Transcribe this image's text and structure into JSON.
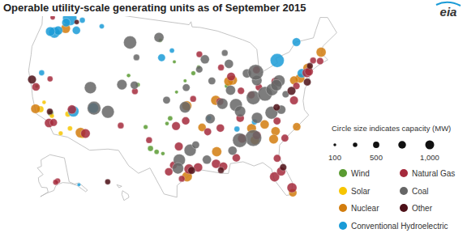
{
  "chart_data": {
    "type": "map",
    "title": "Operable utility-scale generating units as of September 2015",
    "logo": "eia",
    "series": [
      {
        "name": "Wind",
        "color": "#5a9b32",
        "lon": [
          -101.5,
          -100.5,
          -99.5,
          -102.5,
          -98.5,
          -99.0,
          -94.5,
          -93.5,
          -96.0,
          -120.5,
          -118.3,
          -121.7,
          -106.2,
          -98.0,
          -100.8,
          -97.5,
          -104.4,
          -88.6
        ],
        "lat": [
          32.4,
          32.0,
          31.8,
          35.2,
          36.5,
          35.8,
          42.5,
          43.3,
          41.5,
          45.7,
          35.1,
          38.1,
          41.8,
          44.0,
          46.8,
          40.0,
          40.7,
          40.6
        ],
        "size": [
          400,
          300,
          200,
          250,
          300,
          200,
          250,
          200,
          150,
          300,
          400,
          150,
          200,
          150,
          200,
          150,
          250,
          250
        ]
      },
      {
        "name": "Solar",
        "color": "#f7c500",
        "lon": [
          -115.5,
          -114.7,
          -116.0,
          -120.1,
          -112.5,
          -119.8,
          -118.0
        ],
        "lat": [
          35.5,
          33.7,
          32.8,
          35.3,
          33.0,
          36.3,
          34.8
        ],
        "size": [
          400,
          300,
          250,
          550,
          250,
          200,
          250
        ]
      },
      {
        "name": "Nuclear",
        "color": "#d27d0e",
        "lon": [
          -112.9,
          -120.9,
          -95.7,
          -81.3,
          -87.5,
          -88.2,
          -75.6,
          -76.7,
          -73.9,
          -70.8,
          -84.8,
          -81.8,
          -85.1,
          -91.0,
          -80.2,
          -93.2,
          -90.7,
          -95.7,
          -119.3,
          -77.8,
          -82.9
        ],
        "lat": [
          33.4,
          35.2,
          28.8,
          33.9,
          41.3,
          41.2,
          40.2,
          40.1,
          41.3,
          42.9,
          33.1,
          32.9,
          34.7,
          32.0,
          25.4,
          35.3,
          38.8,
          38.2,
          46.5,
          34.0,
          35.0
        ],
        "size": [
          1300,
          1100,
          1300,
          1000,
          1100,
          1100,
          1100,
          900,
          1000,
          1200,
          1000,
          1100,
          1100,
          1200,
          800,
          800,
          1200,
          1200,
          1100,
          800,
          1000
        ]
      },
      {
        "name": "Conventional Hydroelectric",
        "color": "#1a9bd7",
        "lon": [
          -119.0,
          -121.2,
          -120.6,
          -122.0,
          -114.7,
          -111.5,
          -116.5,
          -112.5,
          -121.5,
          -84.5,
          -87.5,
          -79.0,
          -74.8,
          -98.5,
          -100.4,
          -92.0,
          -75.1,
          -119.5,
          -117.2,
          -134.4
        ],
        "lat": [
          47.95,
          45.6,
          46.0,
          45.6,
          36.0,
          36.9,
          48.1,
          47.8,
          40.0,
          35.5,
          34.8,
          43.1,
          45.0,
          45.5,
          44.5,
          36.5,
          40.8,
          47.3,
          46.6,
          58.3
        ],
        "size": [
          2500,
          1500,
          1000,
          1100,
          1500,
          1300,
          400,
          300,
          400,
          400,
          400,
          2400,
          900,
          300,
          700,
          300,
          1000,
          900,
          800,
          150
        ]
      },
      {
        "name": "Natural Gas",
        "color": "#a52a3c",
        "lon": [
          -118.2,
          -117.5,
          -121.8,
          -115.0,
          -112.1,
          -106.6,
          -104.8,
          -95.4,
          -94.0,
          -97.0,
          -97.8,
          -98.5,
          -96.5,
          -101.8,
          -91.2,
          -90.1,
          -88.0,
          -86.8,
          -84.4,
          -82.5,
          -81.4,
          -80.2,
          -81.7,
          -80.8,
          -77.4,
          -76.5,
          -74.2,
          -73.8,
          -71.4,
          -72.6,
          -87.7,
          -86.2,
          -84.5,
          -83.0,
          -80.0,
          -93.3,
          -89.4,
          -94.6,
          -97.5,
          -95.9,
          -92.3,
          -90.2,
          -86.8,
          -122.3,
          -119.8,
          -90.0,
          -80.0,
          -83.0,
          -149.9,
          -151.4
        ],
        "lat": [
          33.8,
          34.0,
          38.0,
          36.2,
          33.4,
          35.1,
          39.8,
          29.8,
          30.0,
          32.8,
          30.3,
          29.4,
          28.5,
          33.5,
          30.4,
          30.0,
          31.0,
          33.5,
          33.7,
          27.9,
          28.5,
          26.1,
          30.3,
          35.2,
          37.5,
          39.3,
          40.7,
          40.8,
          41.8,
          42.1,
          41.8,
          39.8,
          39.1,
          40.0,
          40.4,
          45.0,
          43.1,
          39.1,
          35.5,
          36.2,
          34.7,
          35.1,
          36.2,
          47.5,
          39.5,
          38.6,
          32.8,
          42.3,
          61.2,
          60.7
        ],
        "size": [
          1000,
          700,
          800,
          1000,
          1100,
          500,
          500,
          1200,
          1000,
          900,
          700,
          800,
          500,
          500,
          1000,
          900,
          800,
          1000,
          900,
          1200,
          1000,
          1200,
          700,
          700,
          900,
          600,
          1100,
          900,
          600,
          500,
          900,
          600,
          700,
          600,
          800,
          500,
          500,
          500,
          900,
          800,
          700,
          800,
          800,
          300,
          400,
          700,
          700,
          700,
          400,
          400
        ]
      },
      {
        "name": "Coal",
        "color": "#666666",
        "lon": [
          -112.6,
          -109.0,
          -111.4,
          -107.2,
          -105.1,
          -106.6,
          -101.1,
          -95.2,
          -96.9,
          -97.1,
          -94.3,
          -91.8,
          -95.8,
          -91.2,
          -93.4,
          -88.0,
          -89.6,
          -87.3,
          -86.7,
          -84.2,
          -82.1,
          -80.8,
          -79.3,
          -79.9,
          -83.2,
          -84.8,
          -83.2,
          -87.9,
          -88.5,
          -85.0,
          -87.2,
          -84.0,
          -81.5,
          -79.8,
          -88.5,
          -92.6,
          -78.6,
          -105.0,
          -99.2,
          -92.3,
          -96.0
        ],
        "lat": [
          39.5,
          36.7,
          36.9,
          40.5,
          44.3,
          46.2,
          47.2,
          32.3,
          31.0,
          29.9,
          33.0,
          36.4,
          40.6,
          41.4,
          43.0,
          40.0,
          38.3,
          38.0,
          37.1,
          38.7,
          39.0,
          39.4,
          40.4,
          39.9,
          40.9,
          42.0,
          42.0,
          43.5,
          45.0,
          33.4,
          33.3,
          36.0,
          36.4,
          36.6,
          32.0,
          31.0,
          38.5,
          40.6,
          38.9,
          44.3,
          38.0
        ],
        "size": [
          1800,
          2000,
          2300,
          1300,
          500,
          2100,
          1200,
          1800,
          1800,
          1600,
          700,
          1200,
          700,
          700,
          600,
          1200,
          1500,
          2000,
          1500,
          2400,
          2600,
          1800,
          1700,
          1600,
          1300,
          1000,
          3000,
          1000,
          500,
          3400,
          2600,
          1500,
          2000,
          1000,
          1000,
          1000,
          600,
          800,
          700,
          1000,
          1600
        ]
      },
      {
        "name": "Other",
        "color": "#4d1018",
        "lon": [
          -77.5,
          -74.5,
          -118.5,
          -81.0,
          -95.0,
          -122.8,
          -73.4,
          -80.5,
          -117.5,
          -90.5,
          -158.0
        ],
        "lat": [
          38.8,
          39.5,
          35.3,
          29.0,
          29.6,
          38.8,
          41.5,
          37.0,
          47.7,
          29.5,
          21.4
        ],
        "size": [
          900,
          700,
          500,
          600,
          700,
          900,
          500,
          600,
          300,
          500,
          400
        ]
      }
    ],
    "size_legend": {
      "title": "Circle size indicates capacity (MW)",
      "values": [
        100,
        250,
        500,
        750,
        1000
      ],
      "labels": [
        "100",
        null,
        "500",
        null,
        "1,000"
      ]
    }
  }
}
